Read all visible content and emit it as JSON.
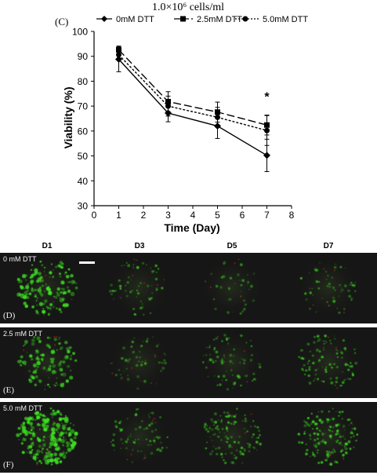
{
  "figure_title": "1.0×10⁶ cells/ml",
  "chart_data": {
    "type": "line",
    "panel_label": "(C)",
    "xlabel": "Time (Day)",
    "ylabel": "Viability (%)",
    "xlim": [
      0,
      8
    ],
    "ylim": [
      30,
      100
    ],
    "xticks": [
      0,
      1,
      2,
      3,
      4,
      5,
      6,
      7,
      8
    ],
    "yticks": [
      30,
      40,
      50,
      60,
      70,
      80,
      90,
      100
    ],
    "legend_position": "top",
    "annotation": "*",
    "annotation_x": 7,
    "annotation_y": 74,
    "series": [
      {
        "name": "0mM DTT",
        "marker": "diamond",
        "line": "solid",
        "x": [
          1,
          3,
          5,
          7
        ],
        "y": [
          88.8,
          67.2,
          62.0,
          50.2
        ],
        "err": [
          5.0,
          3.5,
          5.0,
          6.5
        ]
      },
      {
        "name": "2.5mM DTT",
        "marker": "square",
        "line": "longdash",
        "x": [
          1,
          3,
          5,
          7
        ],
        "y": [
          92.6,
          71.8,
          67.6,
          62.4
        ],
        "err": [
          1.5,
          4.0,
          4.0,
          4.0
        ]
      },
      {
        "name": "5.0mM DTT",
        "marker": "circle",
        "line": "dotted",
        "x": [
          1,
          3,
          5,
          7
        ],
        "y": [
          90.6,
          70.0,
          65.5,
          60.2
        ],
        "err": [
          1.5,
          4.0,
          4.0,
          6.0
        ]
      }
    ]
  },
  "micrographs": {
    "columns": [
      "D1",
      "D3",
      "D5",
      "D7"
    ],
    "rows": [
      {
        "title": "0 mM DTT",
        "letter": "(D)"
      },
      {
        "title": "2.5 mM DTT",
        "letter": "(E)"
      },
      {
        "title": "5.0 mM DTT",
        "letter": "(F)"
      }
    ],
    "dot_color": "#3ee022",
    "red_color": "#c03020",
    "background": "#161616",
    "scale_bar_color": "#ffffff"
  }
}
